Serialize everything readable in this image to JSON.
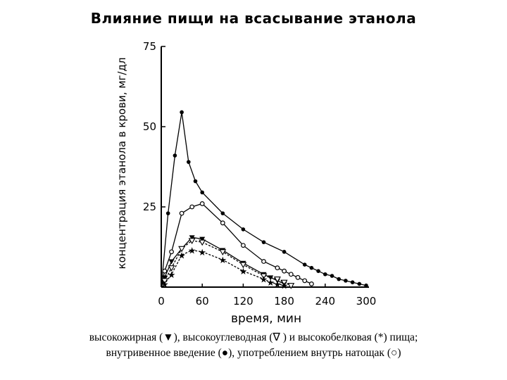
{
  "title": "Влияние пищи на всасывание этанола",
  "caption": {
    "line1": "высокожирная (▼), высокоуглеводная (∇ ) и высокобелковая (*) пища;",
    "line2": "внутривенное введение (●),  употреблением внутрь натощак (○)"
  },
  "chart_data": {
    "type": "line",
    "xlabel": "время, мин",
    "ylabel": "концентрация этанола в крови, мг/дл",
    "xlim": [
      0,
      300
    ],
    "ylim": [
      0,
      75
    ],
    "x_ticks": [
      "0",
      "60",
      "120",
      "180",
      "240",
      "300"
    ],
    "y_ticks": [
      "25",
      "50",
      "75"
    ],
    "grid": false,
    "series": [
      {
        "marker": "filled-circle",
        "x": [
          0,
          10,
          20,
          30,
          40,
          50,
          60,
          90,
          120,
          150,
          180,
          210,
          220,
          230,
          240,
          250,
          260,
          270,
          280,
          290,
          300
        ],
        "y": [
          0,
          23,
          41,
          54.5,
          39,
          33,
          29.5,
          23,
          18,
          14,
          11,
          7,
          6,
          5,
          4,
          3.5,
          2.5,
          2,
          1.5,
          1,
          0.5
        ]
      },
      {
        "marker": "open-circle",
        "x": [
          0,
          5,
          15,
          30,
          45,
          60,
          90,
          120,
          150,
          170,
          180,
          190,
          200,
          210,
          220
        ],
        "y": [
          0,
          5,
          11,
          23,
          25,
          26,
          20,
          13,
          8,
          6,
          5,
          4,
          3,
          2,
          1
        ]
      },
      {
        "marker": "filled-triangle",
        "x": [
          0,
          5,
          15,
          30,
          45,
          60,
          90,
          120,
          150,
          160,
          170,
          180
        ],
        "y": [
          0,
          3,
          8,
          12,
          15.5,
          15,
          11.5,
          7.5,
          4,
          3,
          2,
          1
        ]
      },
      {
        "marker": "open-triangle",
        "x": [
          0,
          5,
          15,
          30,
          45,
          60,
          90,
          120,
          150,
          170,
          180,
          190
        ],
        "y": [
          0,
          2,
          6,
          12,
          14.5,
          14,
          11,
          7,
          3.5,
          2.5,
          1.5,
          0.5
        ]
      },
      {
        "marker": "star",
        "x": [
          0,
          5,
          15,
          30,
          45,
          60,
          90,
          120,
          150,
          160,
          170,
          180
        ],
        "y": [
          0,
          1,
          4,
          10,
          11.5,
          11,
          8.5,
          5,
          2.5,
          1.5,
          1,
          0.5
        ]
      }
    ]
  }
}
